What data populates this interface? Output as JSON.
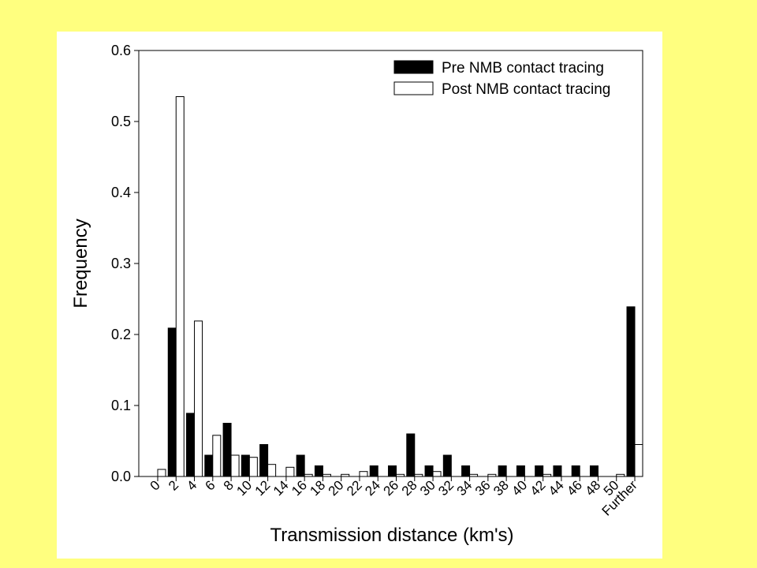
{
  "chart_data": {
    "type": "bar",
    "title": "",
    "xlabel": "Transmission distance (km's)",
    "ylabel": "Frequency",
    "ylim": [
      0,
      0.6
    ],
    "yticks": [
      "0.0",
      "0.1",
      "0.2",
      "0.3",
      "0.4",
      "0.5",
      "0.6"
    ],
    "grid": false,
    "legend_position": "top-right",
    "categories": [
      "0",
      "2",
      "4",
      "6",
      "8",
      "10",
      "12",
      "14",
      "16",
      "18",
      "20",
      "22",
      "24",
      "26",
      "28",
      "30",
      "32",
      "34",
      "36",
      "38",
      "40",
      "42",
      "44",
      "46",
      "48",
      "50",
      "Further"
    ],
    "series": [
      {
        "name": "Pre NMB contact tracing",
        "color": "#000000",
        "values": [
          0,
          0.209,
          0.089,
          0.03,
          0.075,
          0.03,
          0.045,
          0,
          0.03,
          0.015,
          0,
          0,
          0.015,
          0.015,
          0.06,
          0.015,
          0.03,
          0.015,
          0,
          0.015,
          0.015,
          0.015,
          0.015,
          0.015,
          0.015,
          0,
          0.239
        ]
      },
      {
        "name": "Post NMB contact tracing",
        "color": "#ffffff",
        "values": [
          0.01,
          0.535,
          0.219,
          0.058,
          0.03,
          0.027,
          0.017,
          0.013,
          0.003,
          0.003,
          0.003,
          0.007,
          0,
          0.003,
          0.003,
          0.007,
          0,
          0.003,
          0.003,
          0,
          0,
          0.003,
          0,
          0,
          0,
          0.003,
          0.045
        ]
      }
    ]
  }
}
